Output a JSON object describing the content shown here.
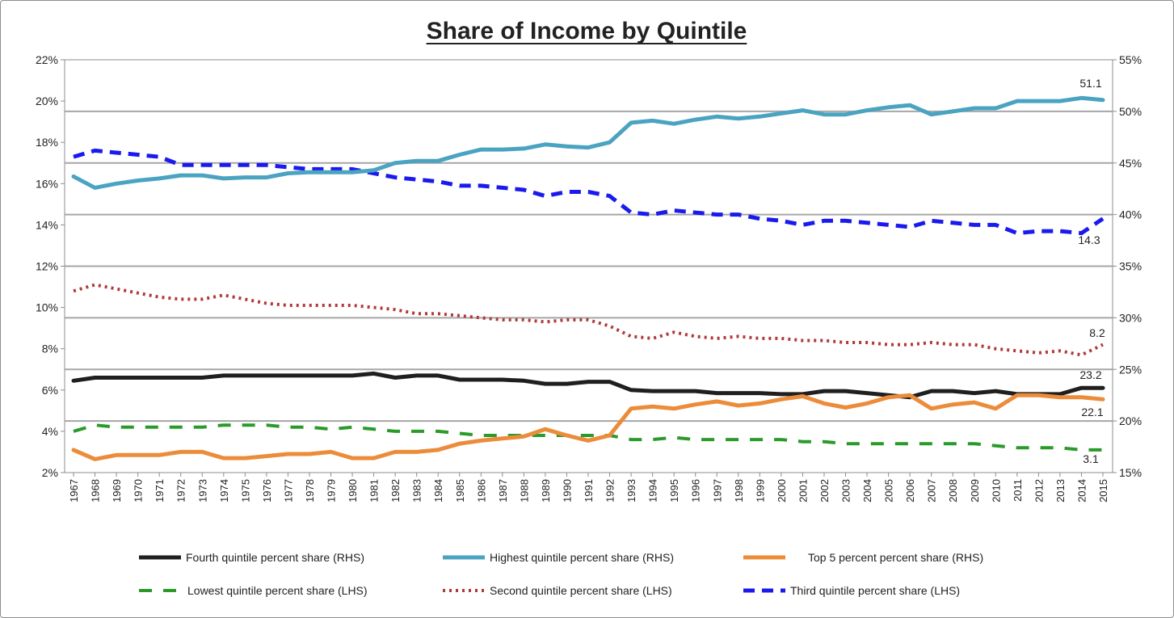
{
  "chart_data": {
    "type": "line",
    "title": "Share of Income by Quintile",
    "xlabel": "",
    "ylabel_left": "",
    "ylabel_right": "",
    "ylim_left": [
      0.02,
      0.22
    ],
    "ylim_right": [
      0.15,
      0.55
    ],
    "yticks_left": [
      "2%",
      "4%",
      "6%",
      "8%",
      "10%",
      "12%",
      "14%",
      "16%",
      "18%",
      "20%",
      "22%"
    ],
    "yticks_right": [
      "15%",
      "20%",
      "25%",
      "30%",
      "35%",
      "40%",
      "45%",
      "50%",
      "55%"
    ],
    "x": [
      "1967",
      "1968",
      "1969",
      "1970",
      "1971",
      "1972",
      "1973",
      "1974",
      "1975",
      "1976",
      "1977",
      "1978",
      "1979",
      "1980",
      "1981",
      "1982",
      "1983",
      "1984",
      "1985",
      "1986",
      "1987",
      "1988",
      "1989",
      "1990",
      "1991",
      "1992",
      "1993",
      "1994",
      "1995",
      "1996",
      "1997",
      "1998",
      "1999",
      "2000",
      "2001",
      "2002",
      "2003",
      "2004",
      "2005",
      "2006",
      "2007",
      "2008",
      "2009",
      "2010",
      "2011",
      "2012",
      "2013",
      "2014",
      "2015"
    ],
    "gridlines": "horizontal (right axis)",
    "legend_position": "bottom",
    "series": [
      {
        "name": "Fourth quintile percent share (RHS)",
        "axis": "right",
        "color": "#1f1f1f",
        "style": "solid",
        "values": [
          23.9,
          24.2,
          24.2,
          24.2,
          24.2,
          24.2,
          24.2,
          24.4,
          24.4,
          24.4,
          24.4,
          24.4,
          24.4,
          24.4,
          24.6,
          24.2,
          24.4,
          24.4,
          24.0,
          24.0,
          24.0,
          23.9,
          23.6,
          23.6,
          23.8,
          23.8,
          23.0,
          22.9,
          22.9,
          22.9,
          22.7,
          22.7,
          22.7,
          22.6,
          22.6,
          22.9,
          22.9,
          22.7,
          22.5,
          22.3,
          22.9,
          22.9,
          22.7,
          22.9,
          22.6,
          22.6,
          22.6,
          23.2,
          23.2
        ]
      },
      {
        "name": "Highest quintile percent share (RHS)",
        "axis": "right",
        "color": "#4aa3c0",
        "style": "solid",
        "values": [
          43.7,
          42.6,
          43.0,
          43.3,
          43.5,
          43.8,
          43.8,
          43.5,
          43.6,
          43.6,
          44.0,
          44.1,
          44.1,
          44.1,
          44.3,
          45.0,
          45.2,
          45.2,
          45.8,
          46.3,
          46.3,
          46.4,
          46.8,
          46.6,
          46.5,
          47.0,
          48.9,
          49.1,
          48.8,
          49.2,
          49.5,
          49.3,
          49.5,
          49.8,
          50.1,
          49.7,
          49.7,
          50.1,
          50.4,
          50.6,
          49.7,
          50.0,
          50.3,
          50.3,
          51.0,
          51.0,
          51.0,
          51.3,
          51.1
        ]
      },
      {
        "name": "Top 5 percent percent share (RHS)",
        "axis": "right",
        "color": "#ec8c3a",
        "style": "solid",
        "values": [
          17.2,
          16.3,
          16.7,
          16.7,
          16.7,
          17.0,
          17.0,
          16.4,
          16.4,
          16.6,
          16.8,
          16.8,
          17.0,
          16.4,
          16.4,
          17.0,
          17.0,
          17.2,
          17.8,
          18.1,
          18.3,
          18.5,
          19.2,
          18.6,
          18.1,
          18.6,
          21.2,
          21.4,
          21.2,
          21.6,
          21.9,
          21.5,
          21.7,
          22.1,
          22.4,
          21.7,
          21.3,
          21.7,
          22.3,
          22.5,
          21.2,
          21.6,
          21.8,
          21.2,
          22.5,
          22.5,
          22.3,
          22.3,
          22.1
        ]
      },
      {
        "name": "Lowest quintile percent share (LHS)",
        "axis": "left",
        "color": "#2a9a2a",
        "style": "long-dash",
        "values": [
          4.0,
          4.3,
          4.2,
          4.2,
          4.2,
          4.2,
          4.2,
          4.3,
          4.3,
          4.3,
          4.2,
          4.2,
          4.1,
          4.2,
          4.1,
          4.0,
          4.0,
          4.0,
          3.9,
          3.8,
          3.8,
          3.8,
          3.8,
          3.8,
          3.8,
          3.8,
          3.6,
          3.6,
          3.7,
          3.6,
          3.6,
          3.6,
          3.6,
          3.6,
          3.5,
          3.5,
          3.4,
          3.4,
          3.4,
          3.4,
          3.4,
          3.4,
          3.4,
          3.3,
          3.2,
          3.2,
          3.2,
          3.1,
          3.1
        ]
      },
      {
        "name": "Second quintile percent share (LHS)",
        "axis": "left",
        "color": "#b03a3a",
        "style": "dotted",
        "values": [
          10.8,
          11.1,
          10.9,
          10.7,
          10.5,
          10.4,
          10.4,
          10.6,
          10.4,
          10.2,
          10.1,
          10.1,
          10.1,
          10.1,
          10.0,
          9.9,
          9.7,
          9.7,
          9.6,
          9.5,
          9.4,
          9.4,
          9.3,
          9.4,
          9.4,
          9.1,
          8.6,
          8.5,
          8.8,
          8.6,
          8.5,
          8.6,
          8.5,
          8.5,
          8.4,
          8.4,
          8.3,
          8.3,
          8.2,
          8.2,
          8.3,
          8.2,
          8.2,
          8.0,
          7.9,
          7.8,
          7.9,
          7.7,
          8.2
        ]
      },
      {
        "name": "Third quintile percent share (LHS)",
        "axis": "left",
        "color": "#1a1aee",
        "style": "dashed",
        "values": [
          17.3,
          17.6,
          17.5,
          17.4,
          17.3,
          16.9,
          16.9,
          16.9,
          16.9,
          16.9,
          16.8,
          16.7,
          16.7,
          16.7,
          16.5,
          16.3,
          16.2,
          16.1,
          15.9,
          15.9,
          15.8,
          15.7,
          15.4,
          15.6,
          15.6,
          15.4,
          14.6,
          14.5,
          14.7,
          14.6,
          14.5,
          14.5,
          14.3,
          14.2,
          14.0,
          14.2,
          14.2,
          14.1,
          14.0,
          13.9,
          14.2,
          14.1,
          14.0,
          14.0,
          13.6,
          13.7,
          13.7,
          13.6,
          14.3
        ]
      }
    ],
    "annotations": [
      {
        "text": "51.1",
        "series": "Highest quintile percent share (RHS)"
      },
      {
        "text": "14.3",
        "series": "Third quintile percent share (LHS)"
      },
      {
        "text": "8.2",
        "series": "Second quintile percent share (LHS)"
      },
      {
        "text": "23.2",
        "series": "Fourth quintile percent share (RHS)"
      },
      {
        "text": "22.1",
        "series": "Top 5 percent percent share (RHS)"
      },
      {
        "text": "3.1",
        "series": "Lowest quintile percent share (LHS)"
      }
    ]
  }
}
